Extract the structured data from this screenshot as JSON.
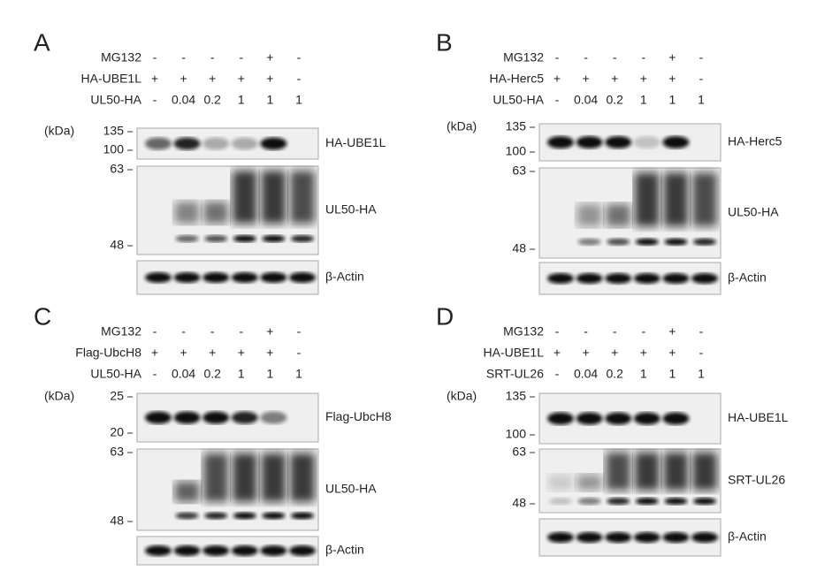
{
  "panels": [
    {
      "letter": "A",
      "rows": [
        {
          "label": "MG132",
          "cells": [
            "-",
            "-",
            "-",
            "-",
            "+",
            "-"
          ]
        },
        {
          "label": "HA-UBE1L",
          "cells": [
            "+",
            "+",
            "+",
            "+",
            "+",
            "-"
          ]
        },
        {
          "label": "UL50-HA",
          "cells": [
            "-",
            "0.04",
            "0.2",
            "1",
            "1",
            "1"
          ]
        }
      ],
      "unit": "(kDa)",
      "blots": [
        {
          "name": "HA-UBE1L",
          "markers": [
            "135",
            "100"
          ]
        },
        {
          "name": "UL50-HA",
          "markers": [
            "63",
            "48"
          ]
        },
        {
          "name": "β-Actin",
          "markers": []
        }
      ]
    },
    {
      "letter": "B",
      "rows": [
        {
          "label": "MG132",
          "cells": [
            "-",
            "-",
            "-",
            "-",
            "+",
            "-"
          ]
        },
        {
          "label": "HA-Herc5",
          "cells": [
            "+",
            "+",
            "+",
            "+",
            "+",
            "-"
          ]
        },
        {
          "label": "UL50-HA",
          "cells": [
            "-",
            "0.04",
            "0.2",
            "1",
            "1",
            "1"
          ]
        }
      ],
      "unit": "(kDa)",
      "blots": [
        {
          "name": "HA-Herc5",
          "markers": [
            "135",
            "100"
          ]
        },
        {
          "name": "UL50-HA",
          "markers": [
            "63",
            "48"
          ]
        },
        {
          "name": "β-Actin",
          "markers": []
        }
      ]
    },
    {
      "letter": "C",
      "rows": [
        {
          "label": "MG132",
          "cells": [
            "-",
            "-",
            "-",
            "-",
            "+",
            "-"
          ]
        },
        {
          "label": "Flag-UbcH8",
          "cells": [
            "+",
            "+",
            "+",
            "+",
            "+",
            "-"
          ]
        },
        {
          "label": "UL50-HA",
          "cells": [
            "-",
            "0.04",
            "0.2",
            "1",
            "1",
            "1"
          ]
        }
      ],
      "unit": "(kDa)",
      "blots": [
        {
          "name": "Flag-UbcH8",
          "markers": [
            "25",
            "20"
          ]
        },
        {
          "name": "UL50-HA",
          "markers": [
            "63",
            "48"
          ]
        },
        {
          "name": "β-Actin",
          "markers": []
        }
      ]
    },
    {
      "letter": "D",
      "rows": [
        {
          "label": "MG132",
          "cells": [
            "-",
            "-",
            "-",
            "-",
            "+",
            "-"
          ]
        },
        {
          "label": "HA-UBE1L",
          "cells": [
            "+",
            "+",
            "+",
            "+",
            "+",
            "-"
          ]
        },
        {
          "label": "SRT-UL26",
          "cells": [
            "-",
            "0.04",
            "0.2",
            "1",
            "1",
            "1"
          ]
        }
      ],
      "unit": "(kDa)",
      "blots": [
        {
          "name": "HA-UBE1L",
          "markers": [
            "135",
            "100"
          ]
        },
        {
          "name": "SRT-UL26",
          "markers": [
            "63",
            "48"
          ]
        },
        {
          "name": "β-Actin",
          "markers": []
        }
      ]
    }
  ]
}
